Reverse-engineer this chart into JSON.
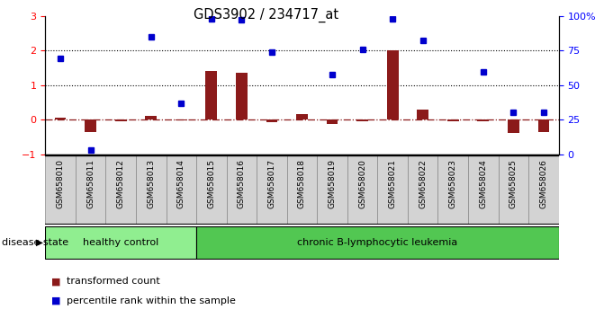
{
  "title": "GDS3902 / 234717_at",
  "samples": [
    "GSM658010",
    "GSM658011",
    "GSM658012",
    "GSM658013",
    "GSM658014",
    "GSM658015",
    "GSM658016",
    "GSM658017",
    "GSM658018",
    "GSM658019",
    "GSM658020",
    "GSM658021",
    "GSM658022",
    "GSM658023",
    "GSM658024",
    "GSM658025",
    "GSM658026"
  ],
  "transformed_count": [
    0.05,
    -0.35,
    -0.05,
    0.1,
    -0.02,
    1.42,
    1.35,
    -0.08,
    0.15,
    -0.12,
    -0.05,
    2.0,
    0.28,
    -0.05,
    -0.05,
    -0.38,
    -0.35
  ],
  "percentile_rank_left": [
    1.78,
    -0.88,
    null,
    2.4,
    0.48,
    2.92,
    2.9,
    1.95,
    null,
    1.3,
    2.02,
    2.92,
    2.28,
    null,
    1.37,
    0.2,
    0.2
  ],
  "healthy_control_count": 5,
  "disease_label_healthy": "healthy control",
  "disease_label_disease": "chronic B-lymphocytic leukemia",
  "disease_state_label": "disease state",
  "legend_red": "transformed count",
  "legend_blue": "percentile rank within the sample",
  "bar_color": "#8B1A1A",
  "dot_color": "#0000CD",
  "healthy_bg": "#90EE90",
  "disease_bg": "#52C752",
  "sample_box_color": "#D3D3D3",
  "sample_box_edge": "#888888",
  "ylim_left": [
    -1,
    3
  ],
  "ylim_right": [
    0,
    100
  ],
  "yticks_left": [
    -1,
    0,
    1,
    2,
    3
  ],
  "yticks_right": [
    0,
    25,
    50,
    75,
    100
  ],
  "hline_values": [
    1,
    2
  ],
  "background_color": "#FFFFFF"
}
